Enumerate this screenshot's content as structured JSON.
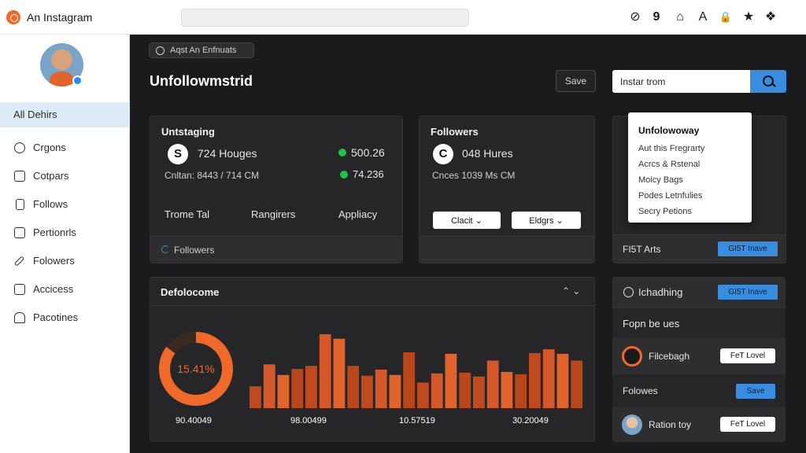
{
  "app": {
    "title": "An Instagram"
  },
  "topbar": {
    "search_value": "",
    "icons": [
      "help-icon",
      "nine-icon",
      "home-icon",
      "font-icon",
      "lock-icon",
      "star-icon",
      "apps-icon"
    ],
    "icon_glyphs": [
      "⊘",
      "9",
      "⌂",
      "A",
      "🔒",
      "★",
      "❖"
    ]
  },
  "sidebar": {
    "items": [
      {
        "label": "All Dehirs",
        "icon": "list-icon"
      },
      {
        "label": "Crgons",
        "icon": "gear-icon"
      },
      {
        "label": "Cotpars",
        "icon": "grid-icon"
      },
      {
        "label": "Follows",
        "icon": "file-icon"
      },
      {
        "label": "Pertionrls",
        "icon": "box-icon"
      },
      {
        "label": "Folowers",
        "icon": "pen-icon"
      },
      {
        "label": "Accicess",
        "icon": "doc-icon"
      },
      {
        "label": "Pacotines",
        "icon": "people-icon"
      }
    ]
  },
  "main": {
    "chip": "Aqst An Enfnuats",
    "title": "Unfollowmstrid",
    "save_label": "Save",
    "search_value": "Instar trom"
  },
  "card1": {
    "title": "Untstaging",
    "icon_glyph": "S",
    "stat1": "724 Houges",
    "stat2": "Cnltan: 8443 / 714 CM",
    "value1": "500.26",
    "value2": "74.236",
    "labels": [
      "Trome Tal",
      "Rangirers",
      "Appliacy"
    ],
    "footer": "Followers"
  },
  "card2": {
    "title": "Followers",
    "icon_glyph": "C",
    "stat1": "048 Hures",
    "stat2": "Cnces 1039 Ms CM",
    "btn1": "Clacit",
    "btn2": "Eldgrs"
  },
  "dropdown": {
    "title": "Unfolowoway",
    "items": [
      "Aut this Fregrarty",
      "Acrcs & Rstenal",
      "Moicy Bags",
      "Podes Letnfulies",
      "Secry Petions"
    ]
  },
  "right": {
    "row1_label": "FI5T Arts",
    "row1_btn": "GI5T Inave",
    "row2_label": "Ichadhing",
    "row2_btn": "GI5T Inave",
    "row3_label": "Fopn be ues",
    "row4_label": "Filcebagh",
    "row4_btn": "FeT Lovel",
    "row5_label": "Folowes",
    "row5_btn": "Save",
    "row6_label": "Ration toy",
    "row6_btn": "FeT Lovel"
  },
  "chart_panel": {
    "title": "Defolocome",
    "donut_label": "15.41%",
    "donut_fraction": 0.85
  },
  "chart_data": {
    "type": "bar",
    "title": "",
    "xlabel": "",
    "ylabel": "",
    "tick_labels": [
      "90.40049",
      "98.00499",
      "10.57519",
      "30.20049"
    ],
    "values": [
      29,
      58,
      44,
      52,
      56,
      98,
      92,
      56,
      43,
      51,
      44,
      74,
      34,
      46,
      72,
      47,
      42,
      63,
      48,
      45,
      73,
      78,
      72,
      63
    ],
    "ylim": [
      0,
      100
    ],
    "colors": [
      "#c04a1f",
      "#d4582a",
      "#e0642c",
      "#b8471c"
    ]
  }
}
